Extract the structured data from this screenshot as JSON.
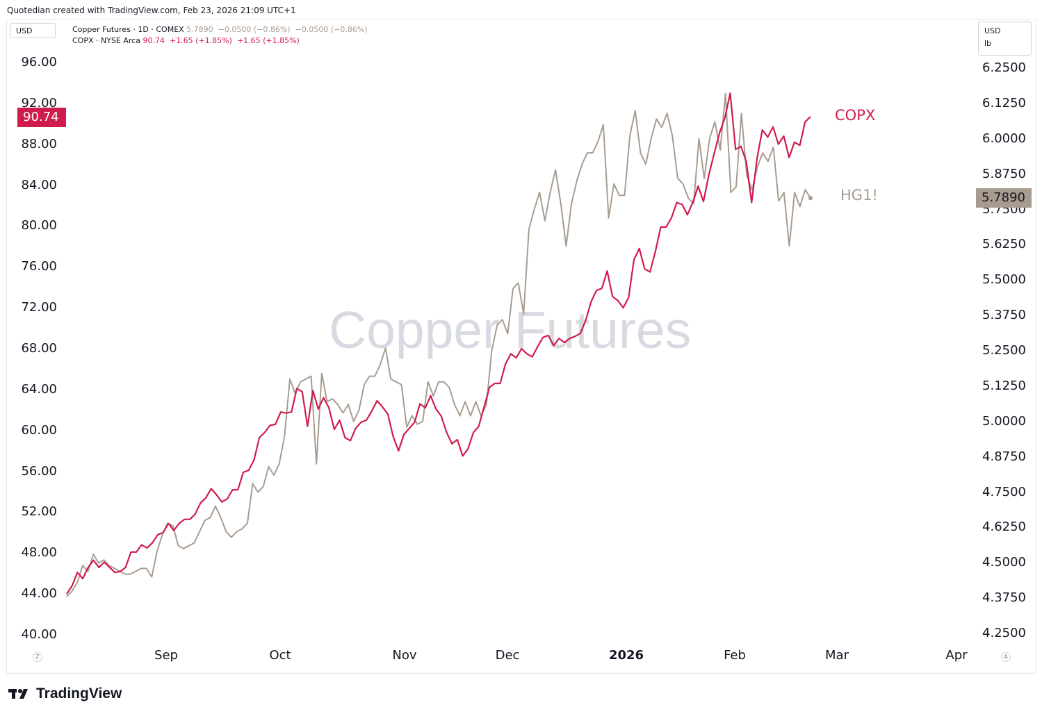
{
  "header": {
    "caption": "Quotedian created with TradingView.com, Feb 23, 2026 21:09 UTC+1"
  },
  "unit_left": "USD",
  "unit_right": {
    "currency": "USD",
    "unit": "lb"
  },
  "legend": {
    "row1": {
      "label": "Copper Futures · 1D · COMEX",
      "values": "5.7890  −0.0500 (−0.86%)  −0.0500 (−0.86%)"
    },
    "row2": {
      "label": "COPX · NYSE Arca",
      "values": "90.74  +1.65 (+1.85%)  +1.65 (+1.85%)"
    }
  },
  "watermark": "Copper Futures",
  "badges": {
    "left": "90.74",
    "right": "5.7890"
  },
  "series_labels": {
    "copx": "COPX",
    "hg": "HG1!"
  },
  "mini": {
    "left": "Z",
    "right": "A"
  },
  "brand": "TradingView",
  "colors": {
    "copx": "#cf1c4c",
    "hg": "#a89c91"
  },
  "chart_data": {
    "type": "line",
    "x_tick_labels": [
      "Sep",
      "Oct",
      "Nov",
      "Dec",
      "2026",
      "Feb",
      "Mar",
      "Apr"
    ],
    "left_axis": {
      "label": "USD",
      "ticks": [
        "96.00",
        "92.00",
        "88.00",
        "84.00",
        "80.00",
        "76.00",
        "72.00",
        "68.00",
        "64.00",
        "60.00",
        "56.00",
        "52.00",
        "48.00",
        "44.00",
        "40.00"
      ],
      "range": [
        40,
        96
      ]
    },
    "right_axis": {
      "label": "USD lb",
      "ticks": [
        "6.2500",
        "6.1250",
        "6.0000",
        "5.8750",
        "5.7500",
        "5.6250",
        "5.5000",
        "5.3750",
        "5.2500",
        "5.1250",
        "5.0000",
        "4.8750",
        "4.7500",
        "4.6250",
        "4.5000",
        "4.3750",
        "4.2500"
      ],
      "range": [
        4.25,
        6.25
      ]
    },
    "series": [
      {
        "name": "COPX",
        "axis": "left",
        "values": [
          44.0,
          44.8,
          46.1,
          45.5,
          46.6,
          47.3,
          46.6,
          47.1,
          46.6,
          46.1,
          46.2,
          46.6,
          48.1,
          48.1,
          48.8,
          48.5,
          49.0,
          49.8,
          50.0,
          50.9,
          50.2,
          50.9,
          51.3,
          51.3,
          51.8,
          52.9,
          53.4,
          54.3,
          53.7,
          53.0,
          53.3,
          54.2,
          54.2,
          55.9,
          56.1,
          57.1,
          59.3,
          59.8,
          60.5,
          60.6,
          61.8,
          61.7,
          61.8,
          64.1,
          63.8,
          60.4,
          63.9,
          62.1,
          63.2,
          62.2,
          60.1,
          61.0,
          59.3,
          59.0,
          60.2,
          60.8,
          61.0,
          61.9,
          62.9,
          62.3,
          61.6,
          59.4,
          58.0,
          59.6,
          60.2,
          60.8,
          62.6,
          62.2,
          63.4,
          62.1,
          61.4,
          59.8,
          58.7,
          59.1,
          57.5,
          58.2,
          59.8,
          60.4,
          62.3,
          64.2,
          64.6,
          64.6,
          66.5,
          67.5,
          67.1,
          68.0,
          67.5,
          67.2,
          68.2,
          69.1,
          69.3,
          68.3,
          69.0,
          68.6,
          69.0,
          69.2,
          69.5,
          70.8,
          72.6,
          73.7,
          73.9,
          75.6,
          73.1,
          72.7,
          72.0,
          73.0,
          76.7,
          77.8,
          75.8,
          75.5,
          77.5,
          79.9,
          79.9,
          80.8,
          82.3,
          82.1,
          81.1,
          82.3,
          83.9,
          82.4,
          85.0,
          87.1,
          89.1,
          90.6,
          93.0,
          87.5,
          87.8,
          86.3,
          82.3,
          86.6,
          89.4,
          88.7,
          89.7,
          88.0,
          88.8,
          86.7,
          88.2,
          87.9,
          90.2,
          90.7
        ]
      },
      {
        "name": "HG1!",
        "axis": "right",
        "values": [
          4.38,
          4.4,
          4.43,
          4.49,
          4.47,
          4.53,
          4.5,
          4.51,
          4.49,
          4.48,
          4.47,
          4.46,
          4.46,
          4.47,
          4.48,
          4.48,
          4.45,
          4.54,
          4.6,
          4.64,
          4.63,
          4.56,
          4.55,
          4.56,
          4.57,
          4.61,
          4.65,
          4.66,
          4.7,
          4.66,
          4.61,
          4.59,
          4.61,
          4.62,
          4.64,
          4.78,
          4.75,
          4.77,
          4.84,
          4.81,
          4.85,
          4.95,
          5.15,
          5.1,
          5.14,
          5.15,
          5.16,
          4.85,
          5.17,
          5.07,
          5.08,
          5.06,
          5.03,
          5.06,
          5.0,
          5.04,
          5.13,
          5.16,
          5.16,
          5.2,
          5.26,
          5.15,
          5.14,
          5.13,
          4.98,
          5.02,
          4.99,
          5.0,
          5.14,
          5.09,
          5.14,
          5.14,
          5.12,
          5.06,
          5.02,
          5.07,
          5.02,
          5.07,
          5.02,
          5.06,
          5.25,
          5.34,
          5.36,
          5.31,
          5.47,
          5.49,
          5.38,
          5.68,
          5.75,
          5.81,
          5.71,
          5.81,
          5.89,
          5.77,
          5.62,
          5.77,
          5.85,
          5.91,
          5.95,
          5.95,
          5.99,
          6.05,
          5.72,
          5.84,
          5.8,
          5.8,
          6.01,
          6.1,
          5.95,
          5.91,
          6.0,
          6.07,
          6.04,
          6.09,
          6.01,
          5.86,
          5.84,
          5.79,
          5.77,
          6.0,
          5.86,
          6.0,
          6.06,
          5.96,
          6.16,
          5.81,
          5.83,
          6.09,
          5.87,
          5.82,
          5.9,
          5.95,
          5.92,
          5.97,
          5.78,
          5.81,
          5.62,
          5.81,
          5.76,
          5.82,
          5.79
        ]
      }
    ]
  }
}
